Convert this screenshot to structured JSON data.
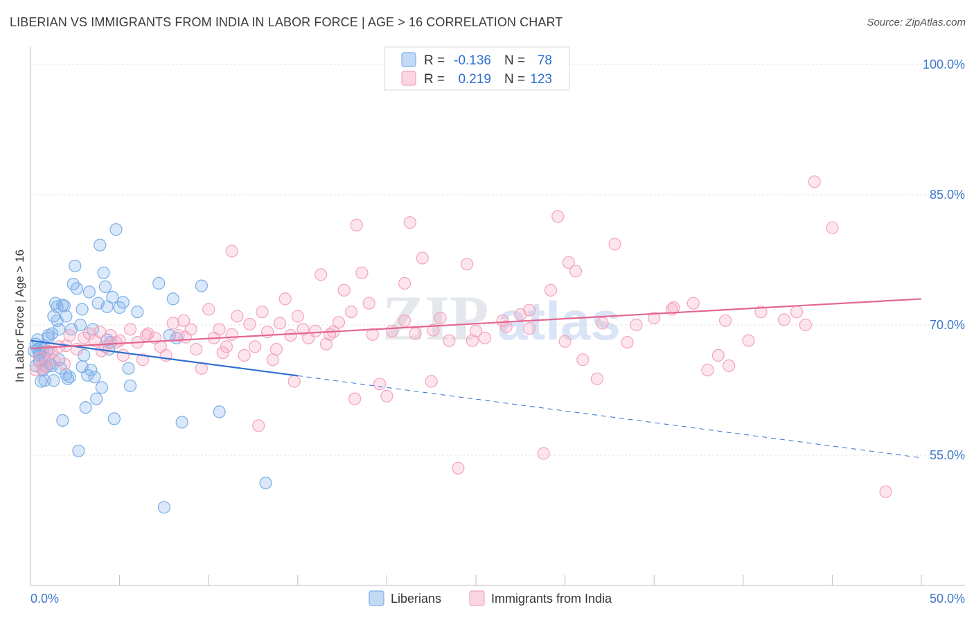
{
  "header": {
    "title": "LIBERIAN VS IMMIGRANTS FROM INDIA IN LABOR FORCE | AGE > 16 CORRELATION CHART",
    "source": "Source: ZipAtlas.com"
  },
  "watermark": {
    "part1": "ZIP",
    "part2": "atlas"
  },
  "chart_data": {
    "type": "scatter",
    "ylabel": "In Labor Force | Age > 16",
    "xlim": [
      0,
      50
    ],
    "ylim": [
      40,
      102
    ],
    "x_ticks": [
      "0.0%",
      "50.0%"
    ],
    "y_ticks": [
      {
        "value": 100,
        "label": "100.0%"
      },
      {
        "value": 85,
        "label": "85.0%"
      },
      {
        "value": 70,
        "label": "70.0%"
      },
      {
        "value": 55,
        "label": "55.0%"
      }
    ],
    "grid": true,
    "legend_placement": "bottom-center",
    "stats": [
      {
        "r_label": "R =",
        "r": "-0.136",
        "n_label": "N =",
        "n": "78",
        "color": "#7aaee8"
      },
      {
        "r_label": "R =",
        "r": "0.219",
        "n_label": "N =",
        "n": "123",
        "color": "#f4a3bd"
      }
    ],
    "series": [
      {
        "name": "Liberians",
        "color": "#7aaee8",
        "line_color": "#2e6fd0",
        "trend": {
          "x0": 0,
          "y0": 68.2,
          "x1": 50,
          "y1": 54.7,
          "solid_until": 15
        },
        "points": [
          [
            0.3,
            67.8
          ],
          [
            0.4,
            67.2
          ],
          [
            0.5,
            66.5
          ],
          [
            0.5,
            65.8
          ],
          [
            0.6,
            67.5
          ],
          [
            0.7,
            64.8
          ],
          [
            0.8,
            66.2
          ],
          [
            0.9,
            67.0
          ],
          [
            1.0,
            68.5
          ],
          [
            1.1,
            65.5
          ],
          [
            0.6,
            63.5
          ],
          [
            1.2,
            69.0
          ],
          [
            1.3,
            71.0
          ],
          [
            1.4,
            72.5
          ],
          [
            1.5,
            70.5
          ],
          [
            1.6,
            66.0
          ],
          [
            1.7,
            65.0
          ],
          [
            1.8,
            59.0
          ],
          [
            1.9,
            72.2
          ],
          [
            2.0,
            71.0
          ],
          [
            2.1,
            63.8
          ],
          [
            2.2,
            64.0
          ],
          [
            2.3,
            69.5
          ],
          [
            2.4,
            74.7
          ],
          [
            2.5,
            76.8
          ],
          [
            2.6,
            74.2
          ],
          [
            2.7,
            55.5
          ],
          [
            2.8,
            70.0
          ],
          [
            2.9,
            71.8
          ],
          [
            3.0,
            66.5
          ],
          [
            3.1,
            60.5
          ],
          [
            3.2,
            64.2
          ],
          [
            3.3,
            73.8
          ],
          [
            3.4,
            64.8
          ],
          [
            3.5,
            69.5
          ],
          [
            3.6,
            64.0
          ],
          [
            3.7,
            61.5
          ],
          [
            3.8,
            72.5
          ],
          [
            3.9,
            79.2
          ],
          [
            4.0,
            62.8
          ],
          [
            4.1,
            76.0
          ],
          [
            4.2,
            74.4
          ],
          [
            4.3,
            72.1
          ],
          [
            4.4,
            67.2
          ],
          [
            4.5,
            68.0
          ],
          [
            4.6,
            73.2
          ],
          [
            4.7,
            59.2
          ],
          [
            4.8,
            81.0
          ],
          [
            5.0,
            72.0
          ],
          [
            5.2,
            72.6
          ],
          [
            5.5,
            65.0
          ],
          [
            5.6,
            63.0
          ],
          [
            6.0,
            71.5
          ],
          [
            7.2,
            74.8
          ],
          [
            7.5,
            49.0
          ],
          [
            7.8,
            68.8
          ],
          [
            8.0,
            73.0
          ],
          [
            8.2,
            68.5
          ],
          [
            8.5,
            58.8
          ],
          [
            9.6,
            74.5
          ],
          [
            10.6,
            60.0
          ],
          [
            13.2,
            51.8
          ],
          [
            0.8,
            63.6
          ],
          [
            1.0,
            68.8
          ],
          [
            1.5,
            72.1
          ],
          [
            2.0,
            64.3
          ],
          [
            0.3,
            65.3
          ],
          [
            0.5,
            66.8
          ],
          [
            1.2,
            65.3
          ],
          [
            1.8,
            72.3
          ],
          [
            0.2,
            67.0
          ],
          [
            0.9,
            65.2
          ],
          [
            4.3,
            68.3
          ],
          [
            0.4,
            68.3
          ],
          [
            1.3,
            63.6
          ],
          [
            1.6,
            69.5
          ],
          [
            2.9,
            65.2
          ],
          [
            0.7,
            67.2
          ]
        ]
      },
      {
        "name": "Immigrants from India",
        "color": "#f4a3bd",
        "line_color": "#e36690",
        "trend": {
          "x0": 0,
          "y0": 67.3,
          "x1": 50,
          "y1": 73.0,
          "solid_until": 50
        },
        "points": [
          [
            0.3,
            64.8
          ],
          [
            0.5,
            66.2
          ],
          [
            0.8,
            65.3
          ],
          [
            1.0,
            67.0
          ],
          [
            1.3,
            66.0
          ],
          [
            1.6,
            67.5
          ],
          [
            1.9,
            65.5
          ],
          [
            2.2,
            68.8
          ],
          [
            2.6,
            67.2
          ],
          [
            3.0,
            68.5
          ],
          [
            3.3,
            69.0
          ],
          [
            3.6,
            68.2
          ],
          [
            3.9,
            69.2
          ],
          [
            4.2,
            67.5
          ],
          [
            4.5,
            68.8
          ],
          [
            4.8,
            68.0
          ],
          [
            5.2,
            66.5
          ],
          [
            5.6,
            69.5
          ],
          [
            6.0,
            68.0
          ],
          [
            6.3,
            66.0
          ],
          [
            6.6,
            69.0
          ],
          [
            7.0,
            68.5
          ],
          [
            7.3,
            67.5
          ],
          [
            7.6,
            66.5
          ],
          [
            8.0,
            70.2
          ],
          [
            8.3,
            68.8
          ],
          [
            8.6,
            70.5
          ],
          [
            9.0,
            69.5
          ],
          [
            9.3,
            67.2
          ],
          [
            9.6,
            65.0
          ],
          [
            10.0,
            71.8
          ],
          [
            10.3,
            68.5
          ],
          [
            10.6,
            69.5
          ],
          [
            11.0,
            67.5
          ],
          [
            11.3,
            68.9
          ],
          [
            11.6,
            71.0
          ],
          [
            12.0,
            66.5
          ],
          [
            12.3,
            70.1
          ],
          [
            12.6,
            67.5
          ],
          [
            13.0,
            71.5
          ],
          [
            13.3,
            69.2
          ],
          [
            13.6,
            66.0
          ],
          [
            14.0,
            70.2
          ],
          [
            14.3,
            73.0
          ],
          [
            14.6,
            68.8
          ],
          [
            15.0,
            71.0
          ],
          [
            15.3,
            69.5
          ],
          [
            15.6,
            68.5
          ],
          [
            16.0,
            69.3
          ],
          [
            16.3,
            75.8
          ],
          [
            16.6,
            67.8
          ],
          [
            17.0,
            69.2
          ],
          [
            17.3,
            70.3
          ],
          [
            17.6,
            74.0
          ],
          [
            18.0,
            71.5
          ],
          [
            18.3,
            81.5
          ],
          [
            18.6,
            76.0
          ],
          [
            19.0,
            72.5
          ],
          [
            19.6,
            63.2
          ],
          [
            20.0,
            61.8
          ],
          [
            20.3,
            69.3
          ],
          [
            21.0,
            74.8
          ],
          [
            21.3,
            81.8
          ],
          [
            21.6,
            69.0
          ],
          [
            22.0,
            77.7
          ],
          [
            22.5,
            63.5
          ],
          [
            23.0,
            70.8
          ],
          [
            23.5,
            68.2
          ],
          [
            24.0,
            53.5
          ],
          [
            24.5,
            77.0
          ],
          [
            25.0,
            69.3
          ],
          [
            25.5,
            68.5
          ],
          [
            26.5,
            70.5
          ],
          [
            27.5,
            71.2
          ],
          [
            28.0,
            71.7
          ],
          [
            28.8,
            55.2
          ],
          [
            29.2,
            74.0
          ],
          [
            29.6,
            82.5
          ],
          [
            30.2,
            77.2
          ],
          [
            30.6,
            76.2
          ],
          [
            31.0,
            66.0
          ],
          [
            31.8,
            63.8
          ],
          [
            32.8,
            79.3
          ],
          [
            33.5,
            68.0
          ],
          [
            34.0,
            70.0
          ],
          [
            35.0,
            70.8
          ],
          [
            36.0,
            71.8
          ],
          [
            37.2,
            72.5
          ],
          [
            38.0,
            64.8
          ],
          [
            38.6,
            66.5
          ],
          [
            39.2,
            65.3
          ],
          [
            40.3,
            68.2
          ],
          [
            39.0,
            70.5
          ],
          [
            41.0,
            71.5
          ],
          [
            42.3,
            70.6
          ],
          [
            43.5,
            70.0
          ],
          [
            44.0,
            86.5
          ],
          [
            45.0,
            81.2
          ],
          [
            43.0,
            71.5
          ],
          [
            48.0,
            50.8
          ],
          [
            0.7,
            65.0
          ],
          [
            1.2,
            66.8
          ],
          [
            2.0,
            67.6
          ],
          [
            4.0,
            67.0
          ],
          [
            5.0,
            68.2
          ],
          [
            6.5,
            68.8
          ],
          [
            8.7,
            68.6
          ],
          [
            10.8,
            66.8
          ],
          [
            12.8,
            58.4
          ],
          [
            13.8,
            67.2
          ],
          [
            14.8,
            63.5
          ],
          [
            16.8,
            68.9
          ],
          [
            18.2,
            61.5
          ],
          [
            19.2,
            68.9
          ],
          [
            21.0,
            70.5
          ],
          [
            22.6,
            69.4
          ],
          [
            24.8,
            68.2
          ],
          [
            26.7,
            69.8
          ],
          [
            28.0,
            69.6
          ],
          [
            30.0,
            68.1
          ],
          [
            32.1,
            70.2
          ],
          [
            36.1,
            72.0
          ],
          [
            11.3,
            78.5
          ]
        ]
      }
    ]
  }
}
